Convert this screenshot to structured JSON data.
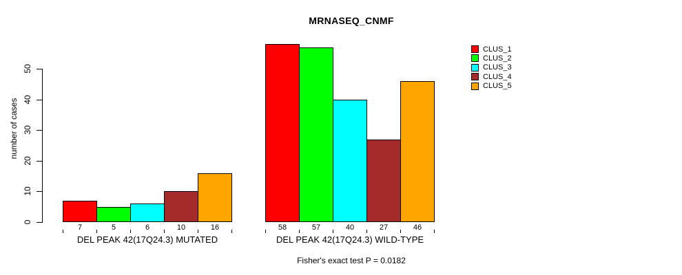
{
  "chart_data": {
    "type": "bar",
    "title": "MRNASEQ_CNMF",
    "ylabel": "number of cases",
    "subtitle": "Fisher's exact test P = 0.0182",
    "ylim": [
      0,
      50
    ],
    "yticks": [
      0,
      10,
      20,
      30,
      40,
      50
    ],
    "grid": false,
    "legend_position": "right-outside",
    "bar_border_color": "#000000",
    "groups": [
      {
        "label": "DEL PEAK 42(17Q24.3) MUTATED",
        "values": [
          7,
          5,
          6,
          10,
          16
        ]
      },
      {
        "label": "DEL PEAK 42(17Q24.3) WILD-TYPE",
        "values": [
          58,
          57,
          40,
          27,
          46
        ]
      }
    ],
    "series": [
      {
        "name": "CLUS_1",
        "color": "#FF0000"
      },
      {
        "name": "CLUS_2",
        "color": "#00FF00"
      },
      {
        "name": "CLUS_3",
        "color": "#00FFFF"
      },
      {
        "name": "CLUS_4",
        "color": "#A52A2A"
      },
      {
        "name": "CLUS_5",
        "color": "#FFA500"
      }
    ]
  }
}
